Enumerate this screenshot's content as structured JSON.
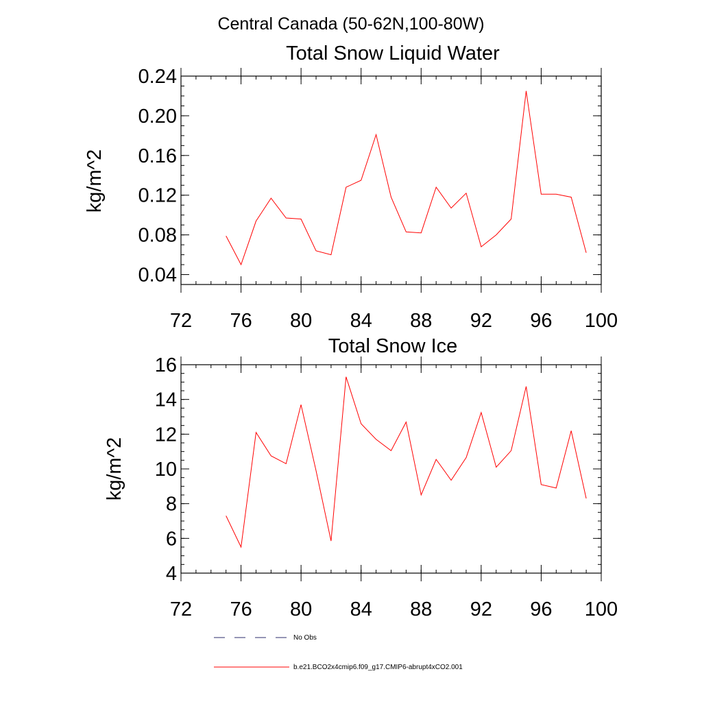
{
  "page_title": "Central Canada (50-62N,100-80W)",
  "colors": {
    "series": "#ff0000",
    "obs": "#2b2b6b"
  },
  "legend": {
    "obs_label": "No Obs",
    "model_label": "b.e21.BCO2x4cmip6.f09_g17.CMIP6-abrupt4xCO2.001"
  },
  "chart_data": [
    {
      "type": "line",
      "title": "Total Snow Liquid Water",
      "xlabel": "",
      "ylabel": "kg/m^2",
      "xlim": [
        72,
        100
      ],
      "ylim": [
        0.03,
        0.24
      ],
      "xticks": [
        72,
        76,
        80,
        84,
        88,
        92,
        96,
        100
      ],
      "xtick_labels": [
        "72",
        "76",
        "80",
        "84",
        "88",
        "92",
        "96",
        "100"
      ],
      "yticks": [
        0.04,
        0.08,
        0.12,
        0.16,
        0.2,
        0.24
      ],
      "ytick_labels": [
        "0.04",
        "0.08",
        "0.12",
        "0.16",
        "0.20",
        "0.24"
      ],
      "yminor_step": 0.01,
      "series": [
        {
          "x": [
            75,
            76,
            77,
            78,
            79,
            80,
            81,
            82,
            83,
            84,
            85,
            86,
            87,
            88,
            89,
            90,
            91,
            92,
            93,
            94,
            95,
            96,
            97,
            98,
            99
          ],
          "values": [
            0.079,
            0.05,
            0.094,
            0.117,
            0.097,
            0.096,
            0.064,
            0.06,
            0.128,
            0.135,
            0.181,
            0.118,
            0.083,
            0.082,
            0.128,
            0.107,
            0.122,
            0.068,
            0.08,
            0.096,
            0.225,
            0.121,
            0.121,
            0.118,
            0.062
          ]
        }
      ]
    },
    {
      "type": "line",
      "title": "Total Snow Ice",
      "xlabel": "",
      "ylabel": "kg/m^2",
      "xlim": [
        72,
        100
      ],
      "ylim": [
        4,
        16
      ],
      "xticks": [
        72,
        76,
        80,
        84,
        88,
        92,
        96,
        100
      ],
      "xtick_labels": [
        "72",
        "76",
        "80",
        "84",
        "88",
        "92",
        "96",
        "100"
      ],
      "yticks": [
        4,
        6,
        8,
        10,
        12,
        14,
        16
      ],
      "ytick_labels": [
        "4",
        "6",
        "8",
        "10",
        "12",
        "14",
        "16"
      ],
      "yminor_step": 0.5,
      "series": [
        {
          "x": [
            75,
            76,
            77,
            78,
            79,
            80,
            81,
            82,
            83,
            84,
            85,
            86,
            87,
            88,
            89,
            90,
            91,
            92,
            93,
            94,
            95,
            96,
            97,
            98,
            99
          ],
          "values": [
            7.3,
            5.5,
            12.1,
            10.75,
            10.3,
            13.7,
            9.9,
            5.85,
            15.3,
            12.6,
            11.7,
            11.05,
            12.7,
            8.5,
            10.55,
            9.35,
            10.65,
            13.25,
            10.1,
            11.05,
            14.75,
            9.1,
            8.9,
            12.2,
            8.3
          ]
        }
      ]
    }
  ]
}
